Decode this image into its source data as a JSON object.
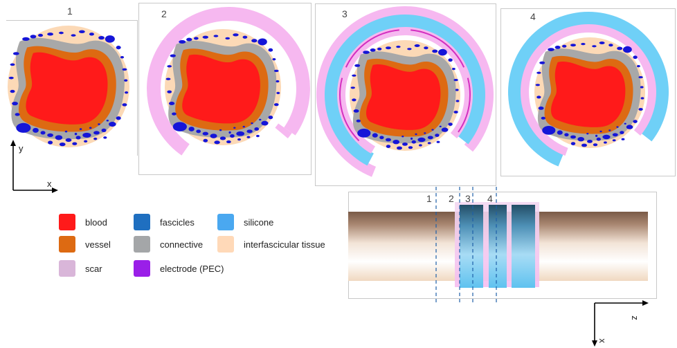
{
  "panels": [
    {
      "num": "1"
    },
    {
      "num": "2"
    },
    {
      "num": "3"
    },
    {
      "num": "4"
    }
  ],
  "side_view": {
    "section_labels": [
      "1",
      "2",
      "3",
      "4"
    ]
  },
  "axes_cross_section": {
    "y": "y",
    "x": "x"
  },
  "axes_side_view": {
    "z": "z",
    "x": "x"
  },
  "legend": [
    {
      "label": "blood",
      "color": "#ff1a1a"
    },
    {
      "label": "vessel",
      "color": "#dd6a12"
    },
    {
      "label": "scar",
      "color": "#d9b6d9"
    },
    {
      "label": "fascicles",
      "color": "#1f6fc0"
    },
    {
      "label": "connective",
      "color": "#a4a6a8"
    },
    {
      "label": "electrode (PEC)",
      "color": "#9a1fe8"
    },
    {
      "label": "silicone",
      "color": "#4aa8f0"
    },
    {
      "label": "interfascicular tissue",
      "color": "#ffd9b8"
    }
  ],
  "colors": {
    "blood": "#ff1a1a",
    "vessel": "#dd6a12",
    "connective": "#a8a8a8",
    "interfascicular": "#fcd9b6",
    "fascicle": "#1515d8",
    "scar": "#f6b8f0",
    "silicone": "#6fd0f7",
    "electrode": "#d42fc0"
  }
}
